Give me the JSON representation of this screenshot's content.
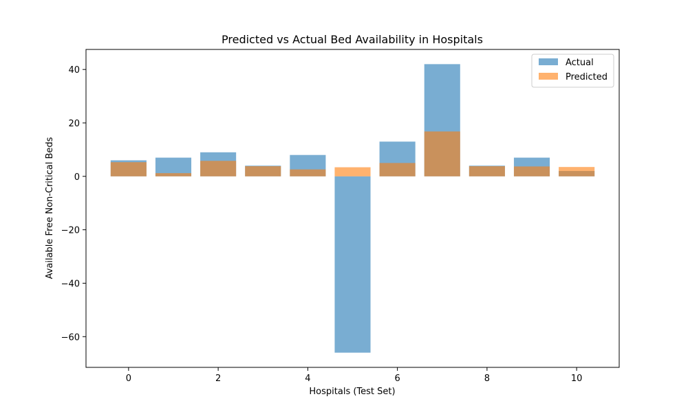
{
  "chart_data": {
    "type": "bar",
    "title": "Predicted vs Actual Bed Availability in Hospitals",
    "xlabel": "Hospitals (Test Set)",
    "ylabel": "Available Free Non-Critical Beds",
    "x": [
      0,
      1,
      2,
      3,
      4,
      5,
      6,
      7,
      8,
      9,
      10
    ],
    "xlim": [
      -0.95,
      10.95
    ],
    "ylim": [
      -71.5,
      47.5
    ],
    "xticks": [
      0,
      2,
      4,
      6,
      8,
      10
    ],
    "yticks": [
      -60,
      -40,
      -20,
      0,
      20,
      40
    ],
    "ytick_labels": [
      "−60",
      "−40",
      "−20",
      "0",
      "20",
      "40"
    ],
    "series": [
      {
        "name": "Actual",
        "color": "#1f77b4",
        "alpha": 0.6,
        "values": [
          6,
          7,
          9,
          4,
          8,
          -66,
          13,
          42,
          4,
          7,
          2
        ]
      },
      {
        "name": "Predicted",
        "color": "#ff7f0e",
        "alpha": 0.6,
        "values": [
          5.3,
          1.2,
          5.8,
          3.8,
          2.6,
          3.4,
          5.0,
          16.8,
          3.8,
          3.7,
          3.5
        ]
      }
    ],
    "legend": "top-right",
    "grid": false
  }
}
